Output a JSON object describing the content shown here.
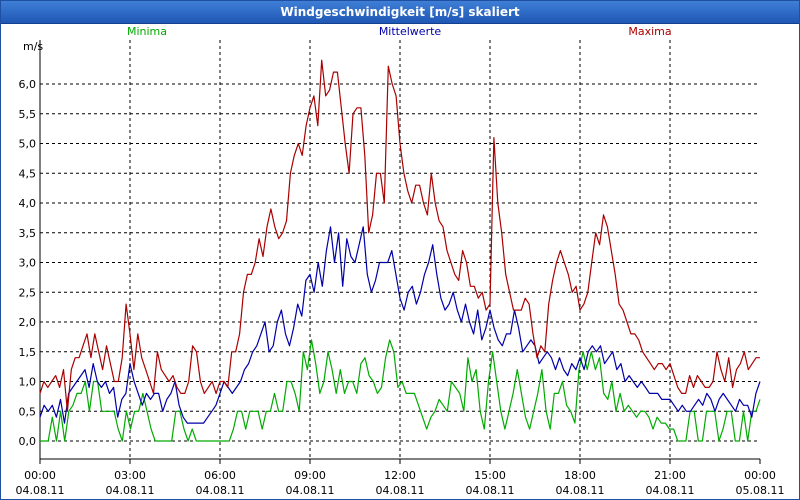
{
  "window": {
    "title": "Windgeschwindigkeit [m/s] skaliert"
  },
  "chart_data": {
    "type": "line",
    "title": "Windgeschwindigkeit [m/s] skaliert",
    "ylabel": "m/s",
    "ylim": [
      0,
      6.5
    ],
    "xlim_hours": [
      0,
      24
    ],
    "grid": true,
    "legend_position": "top",
    "y_ticks": [
      "0,0",
      "0,5",
      "1,0",
      "1,5",
      "2,0",
      "2,5",
      "3,0",
      "3,5",
      "4,0",
      "4,5",
      "5,0",
      "5,5",
      "6,0"
    ],
    "x_ticks": [
      {
        "time": "00:00",
        "date": "04.08.11"
      },
      {
        "time": "03:00",
        "date": "04.08.11"
      },
      {
        "time": "06:00",
        "date": "04.08.11"
      },
      {
        "time": "09:00",
        "date": "04.08.11"
      },
      {
        "time": "12:00",
        "date": "04.08.11"
      },
      {
        "time": "15:00",
        "date": "04.08.11"
      },
      {
        "time": "18:00",
        "date": "04.08.11"
      },
      {
        "time": "21:00",
        "date": "04.08.11"
      },
      {
        "time": "00:00",
        "date": "05.08.11"
      }
    ],
    "series": [
      {
        "name": "Minima",
        "color": "#00aa00",
        "values": [
          0,
          0,
          0,
          0.4,
          0,
          0.5,
          0,
          0.5,
          0.6,
          0.8,
          0.8,
          1,
          0.5,
          1,
          1,
          0.5,
          0.5,
          0.5,
          0.5,
          0.2,
          0,
          0.5,
          0.2,
          0.5,
          0.5,
          0.8,
          0.5,
          0.2,
          0,
          0,
          0,
          0,
          0,
          0.5,
          0.5,
          0.2,
          0,
          0.2,
          0,
          0,
          0,
          0,
          0,
          0,
          0,
          0,
          0,
          0.2,
          0.5,
          0.5,
          0.2,
          0.5,
          0.5,
          0.5,
          0.2,
          0.5,
          0.5,
          0.8,
          0.5,
          0.5,
          1,
          1,
          0.8,
          0.5,
          1.5,
          1.2,
          1.7,
          1.3,
          0.8,
          1,
          1.5,
          1.2,
          0.8,
          1.2,
          0.8,
          1,
          1,
          0.8,
          1.3,
          1.4,
          1.1,
          1,
          0.8,
          0.9,
          1.4,
          1.7,
          1.5,
          0.9,
          1,
          0.8,
          0.8,
          0.8,
          0.6,
          0.4,
          0.2,
          0.4,
          0.5,
          0.7,
          0.6,
          0.5,
          1,
          0.9,
          0.8,
          0.5,
          1.4,
          1,
          1.2,
          0.5,
          0.2,
          1,
          1.5,
          1,
          0.5,
          0.2,
          0.5,
          0.8,
          1.2,
          0.8,
          0.4,
          0.2,
          0.5,
          0.8,
          1.2,
          0.5,
          0.2,
          0.8,
          0.8,
          1,
          0.6,
          0.5,
          0.3,
          1.2,
          1.5,
          1.2,
          1.5,
          1.2,
          1.4,
          0.8,
          0.7,
          1,
          0.5,
          0.8,
          0.5,
          0.6,
          0.5,
          0.4,
          0.5,
          0.5,
          0.4,
          0.2,
          0.4,
          0.3,
          0.3,
          0.2,
          0.2,
          0,
          0,
          0,
          0.5,
          0.5,
          0,
          0,
          0.5,
          0.5,
          0.5,
          0,
          0.2,
          0.5,
          0.5,
          0,
          0,
          0.5,
          0,
          0.5,
          0.5,
          0.7
        ]
      },
      {
        "name": "Mittelwerte",
        "color": "#0000aa",
        "values": [
          0.4,
          0.6,
          0.5,
          0.6,
          0.4,
          0.7,
          0.3,
          0.8,
          0.9,
          1,
          1.1,
          1.2,
          0.9,
          1.3,
          1,
          0.9,
          1,
          0.8,
          0.9,
          0.4,
          0.7,
          0.8,
          1.3,
          1,
          0.8,
          0.6,
          0.8,
          0.7,
          0.8,
          0.8,
          0.5,
          0.7,
          0.8,
          1,
          0.6,
          0.4,
          0.3,
          0.3,
          0.3,
          0.3,
          0.3,
          0.4,
          0.5,
          0.6,
          0.8,
          1,
          0.9,
          0.8,
          0.9,
          1,
          1.2,
          1.3,
          1.5,
          1.6,
          1.8,
          2,
          1.5,
          1.6,
          2,
          2.2,
          1.8,
          1.6,
          1.9,
          2.3,
          2.1,
          2.7,
          2.8,
          2.5,
          3,
          2.6,
          3.2,
          3.6,
          3,
          3.5,
          2.6,
          3.4,
          3.1,
          3,
          3.3,
          3.6,
          2.8,
          2.5,
          2.7,
          3,
          3,
          3,
          3.2,
          2.8,
          2.4,
          2.2,
          2.5,
          2.6,
          2.3,
          2.5,
          2.8,
          3,
          3.3,
          2.8,
          2.4,
          2.2,
          2.3,
          2.5,
          2.2,
          2,
          2.3,
          2,
          1.8,
          2.2,
          1.7,
          1.9,
          2.2,
          1.9,
          1.7,
          1.6,
          1.8,
          1.8,
          2.2,
          1.9,
          1.5,
          1.6,
          1.7,
          1.6,
          1.3,
          1.4,
          1.5,
          1.4,
          1.2,
          1.4,
          1.2,
          1.1,
          1.3,
          1.2,
          1.4,
          1.2,
          1.5,
          1.6,
          1.5,
          1.6,
          1.3,
          1.4,
          1.5,
          1.2,
          1.3,
          1,
          1.1,
          1,
          0.9,
          1,
          0.9,
          0.8,
          0.8,
          0.8,
          0.7,
          0.7,
          0.7,
          0.6,
          0.5,
          0.6,
          0.5,
          0.5,
          0.6,
          0.7,
          0.6,
          0.8,
          0.7,
          0.5,
          0.7,
          0.8,
          0.7,
          0.6,
          0.5,
          0.7,
          0.6,
          0.6,
          0.4,
          0.8,
          1
        ]
      },
      {
        "name": "Maxima",
        "color": "#aa0000",
        "values": [
          0.8,
          1,
          0.9,
          1,
          1.1,
          0.9,
          1.2,
          0.5,
          1.2,
          1.4,
          1.4,
          1.6,
          1.8,
          1.4,
          1.8,
          1.5,
          1.2,
          1.6,
          1.3,
          1,
          1,
          1.4,
          2.3,
          1.8,
          1.2,
          1.8,
          1.4,
          1.2,
          1,
          0.8,
          1.5,
          1.2,
          1.1,
          1,
          1.1,
          0.9,
          0.8,
          0.8,
          1,
          1.6,
          1.5,
          1,
          0.8,
          0.9,
          1,
          0.8,
          1,
          1,
          0.9,
          1.5,
          1.5,
          1.8,
          2.5,
          2.8,
          2.8,
          3,
          3.4,
          3.1,
          3.6,
          3.9,
          3.6,
          3.4,
          3.5,
          3.7,
          4.5,
          4.8,
          5,
          4.8,
          5.3,
          5.6,
          5.8,
          5.3,
          6.4,
          5.8,
          5.9,
          6.2,
          6.2,
          5.6,
          5,
          4.5,
          5.5,
          5.6,
          5.6,
          4.8,
          3.5,
          3.8,
          4.5,
          4.5,
          4,
          6.3,
          6,
          5.8,
          5,
          4.5,
          4.2,
          4,
          4.3,
          4.3,
          4,
          3.8,
          4.5,
          4,
          3.7,
          3.6,
          3.2,
          3,
          2.8,
          2.7,
          3.2,
          3,
          2.6,
          2.6,
          2.4,
          2.5,
          2.2,
          2.3,
          5.1,
          4,
          3.5,
          2.8,
          2.5,
          2.2,
          2.2,
          2.2,
          2.4,
          2.3,
          1.8,
          1.4,
          1.6,
          1.5,
          2.3,
          2.7,
          3,
          3.2,
          3,
          2.8,
          2.5,
          2.6,
          2.2,
          2.3,
          2.5,
          3,
          3.5,
          3.3,
          3.8,
          3.6,
          3.2,
          2.8,
          2.3,
          2.2,
          2,
          1.8,
          1.8,
          1.7,
          1.5,
          1.4,
          1.3,
          1.2,
          1.3,
          1.3,
          1.2,
          1.3,
          1.1,
          0.9,
          0.8,
          0.8,
          1.1,
          0.9,
          1.1,
          1,
          0.9,
          0.9,
          1,
          1.5,
          1.2,
          1,
          1.4,
          0.9,
          1.2,
          1.3,
          1.5,
          1.2,
          1.3,
          1.4,
          1.4
        ]
      }
    ]
  }
}
